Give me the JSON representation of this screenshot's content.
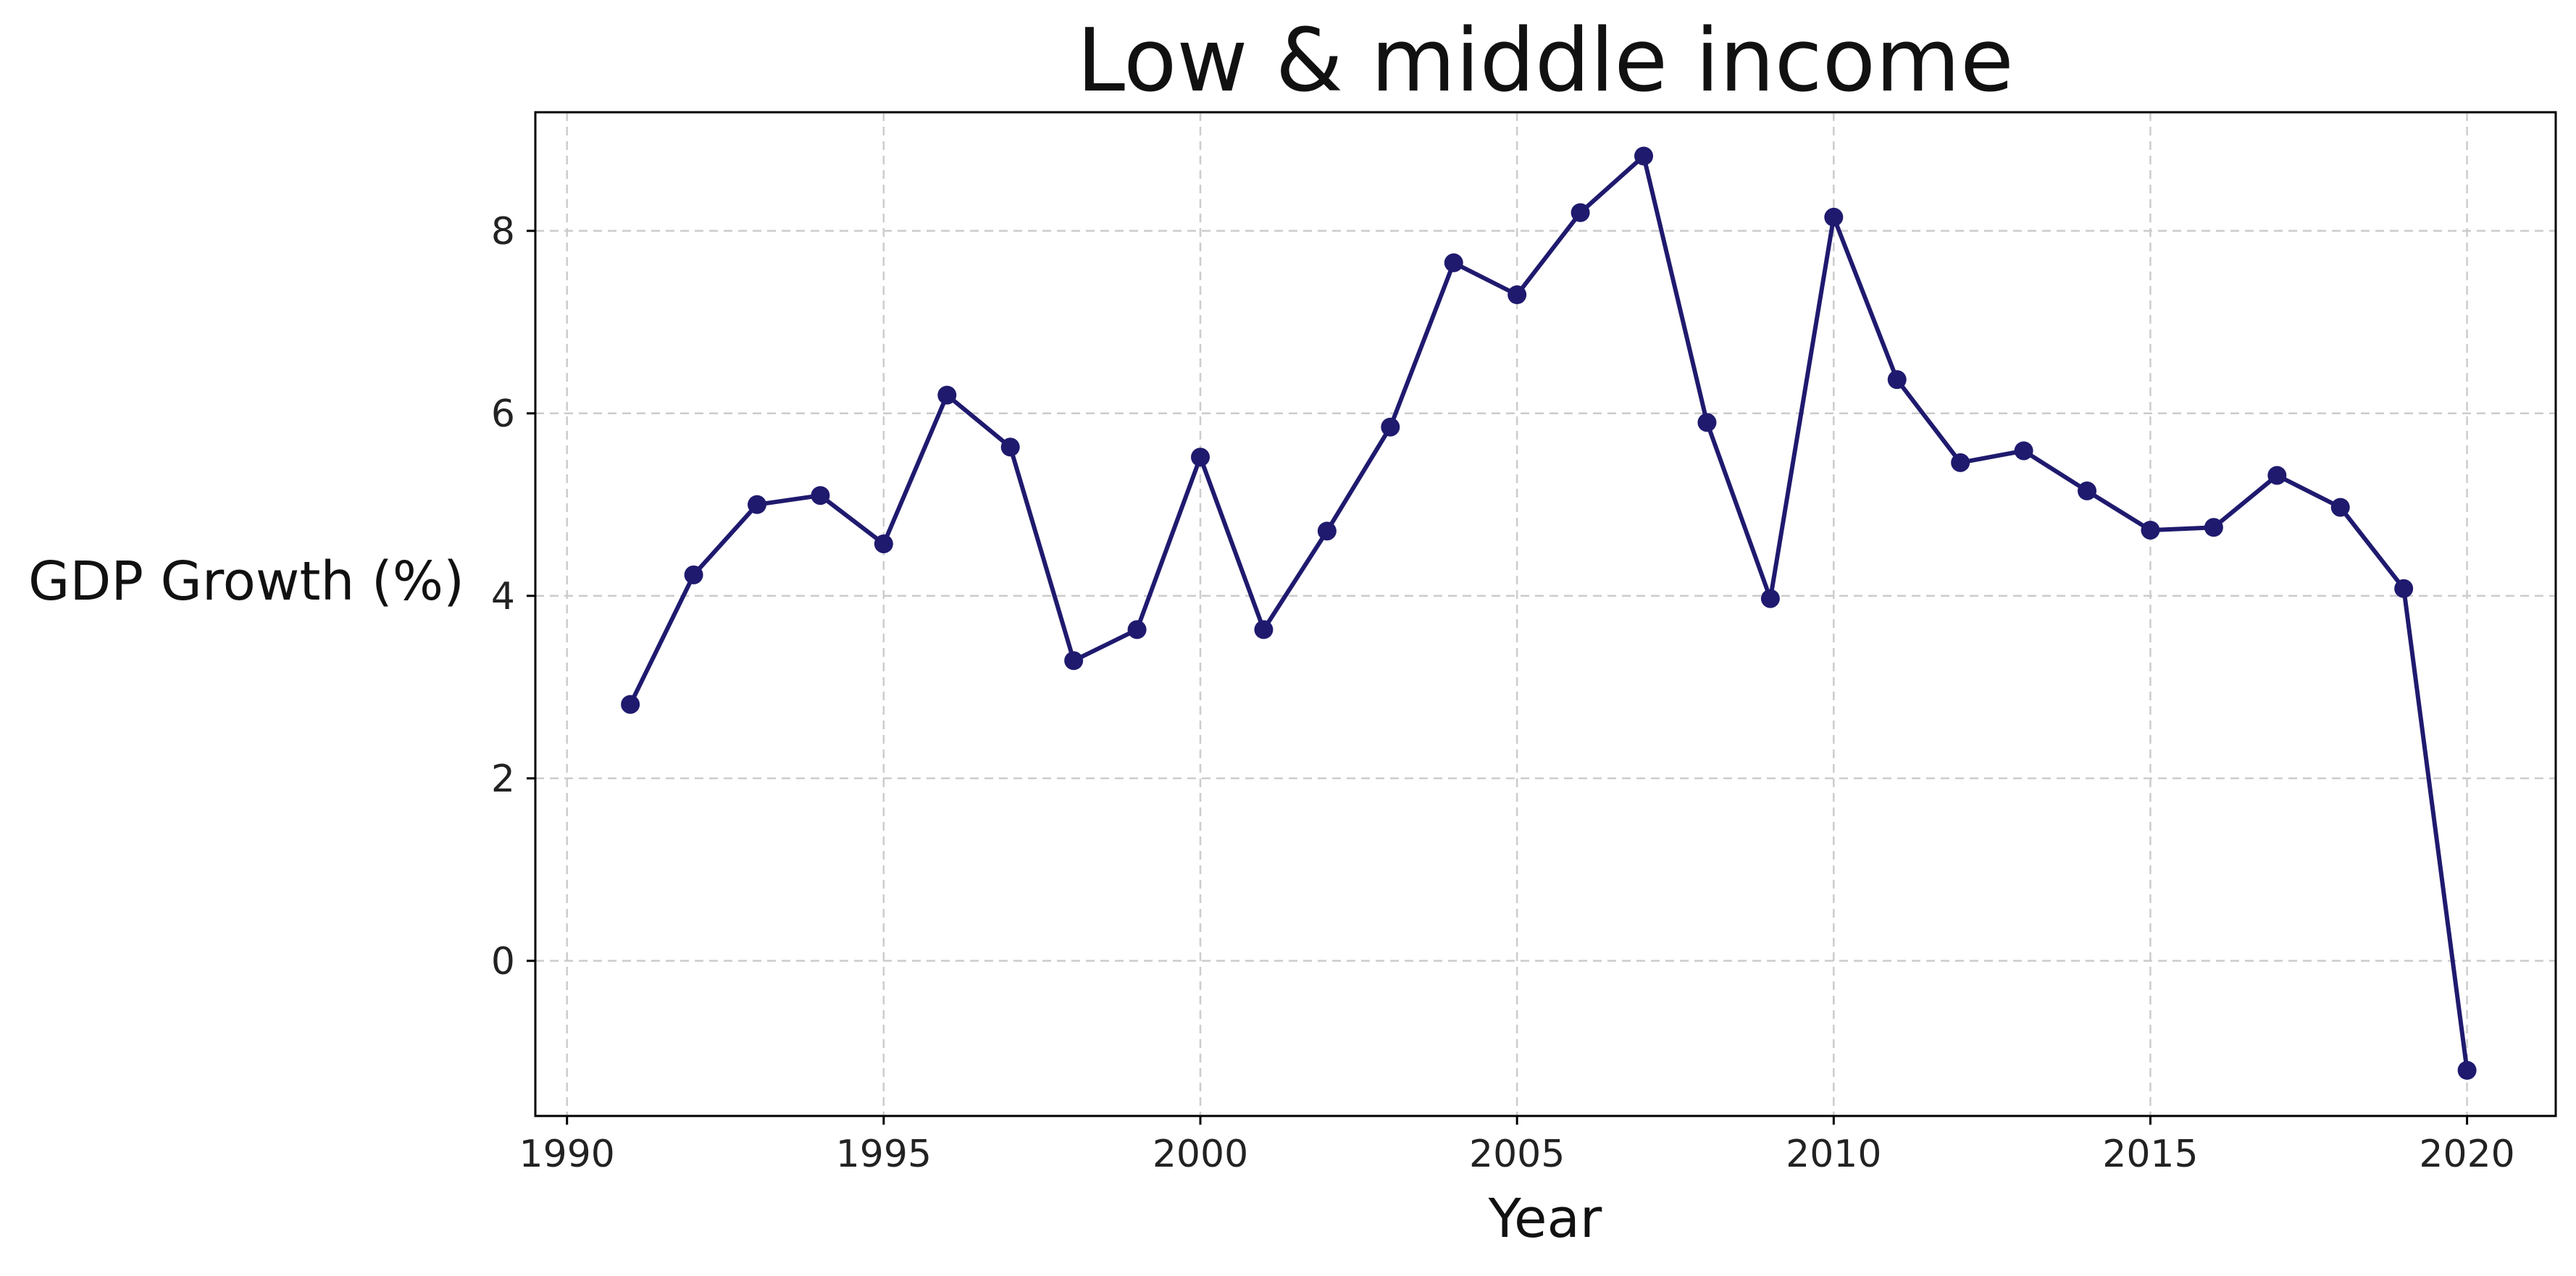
{
  "chart_data": {
    "type": "line",
    "title": "Low & middle income",
    "xlabel": "Year",
    "ylabel": "GDP Growth (%)",
    "xlim": [
      1989.5,
      2021.4
    ],
    "ylim": [
      -1.7,
      9.3
    ],
    "xticks": [
      1990,
      1995,
      2000,
      2005,
      2010,
      2015,
      2020
    ],
    "yticks": [
      0,
      2,
      4,
      6,
      8
    ],
    "grid": true,
    "legend": "none",
    "line_color": "#1f1a6e",
    "grid_color": "#cccccc",
    "series": [
      {
        "x": [
          1991,
          1992,
          1993,
          1994,
          1995,
          1996,
          1997,
          1998,
          1999,
          2000,
          2001,
          2002,
          2003,
          2004,
          2005,
          2006,
          2007,
          2008,
          2009,
          2010,
          2011,
          2012,
          2013,
          2014,
          2015,
          2016,
          2017,
          2018,
          2019,
          2020
        ],
        "values": [
          2.81,
          4.23,
          5.0,
          5.1,
          4.57,
          6.2,
          5.63,
          3.29,
          3.63,
          5.52,
          3.63,
          4.71,
          5.85,
          7.65,
          7.3,
          8.2,
          8.82,
          5.9,
          3.97,
          8.15,
          6.37,
          5.46,
          5.59,
          5.15,
          4.72,
          4.75,
          5.32,
          4.97,
          4.08,
          -1.2
        ]
      }
    ]
  }
}
